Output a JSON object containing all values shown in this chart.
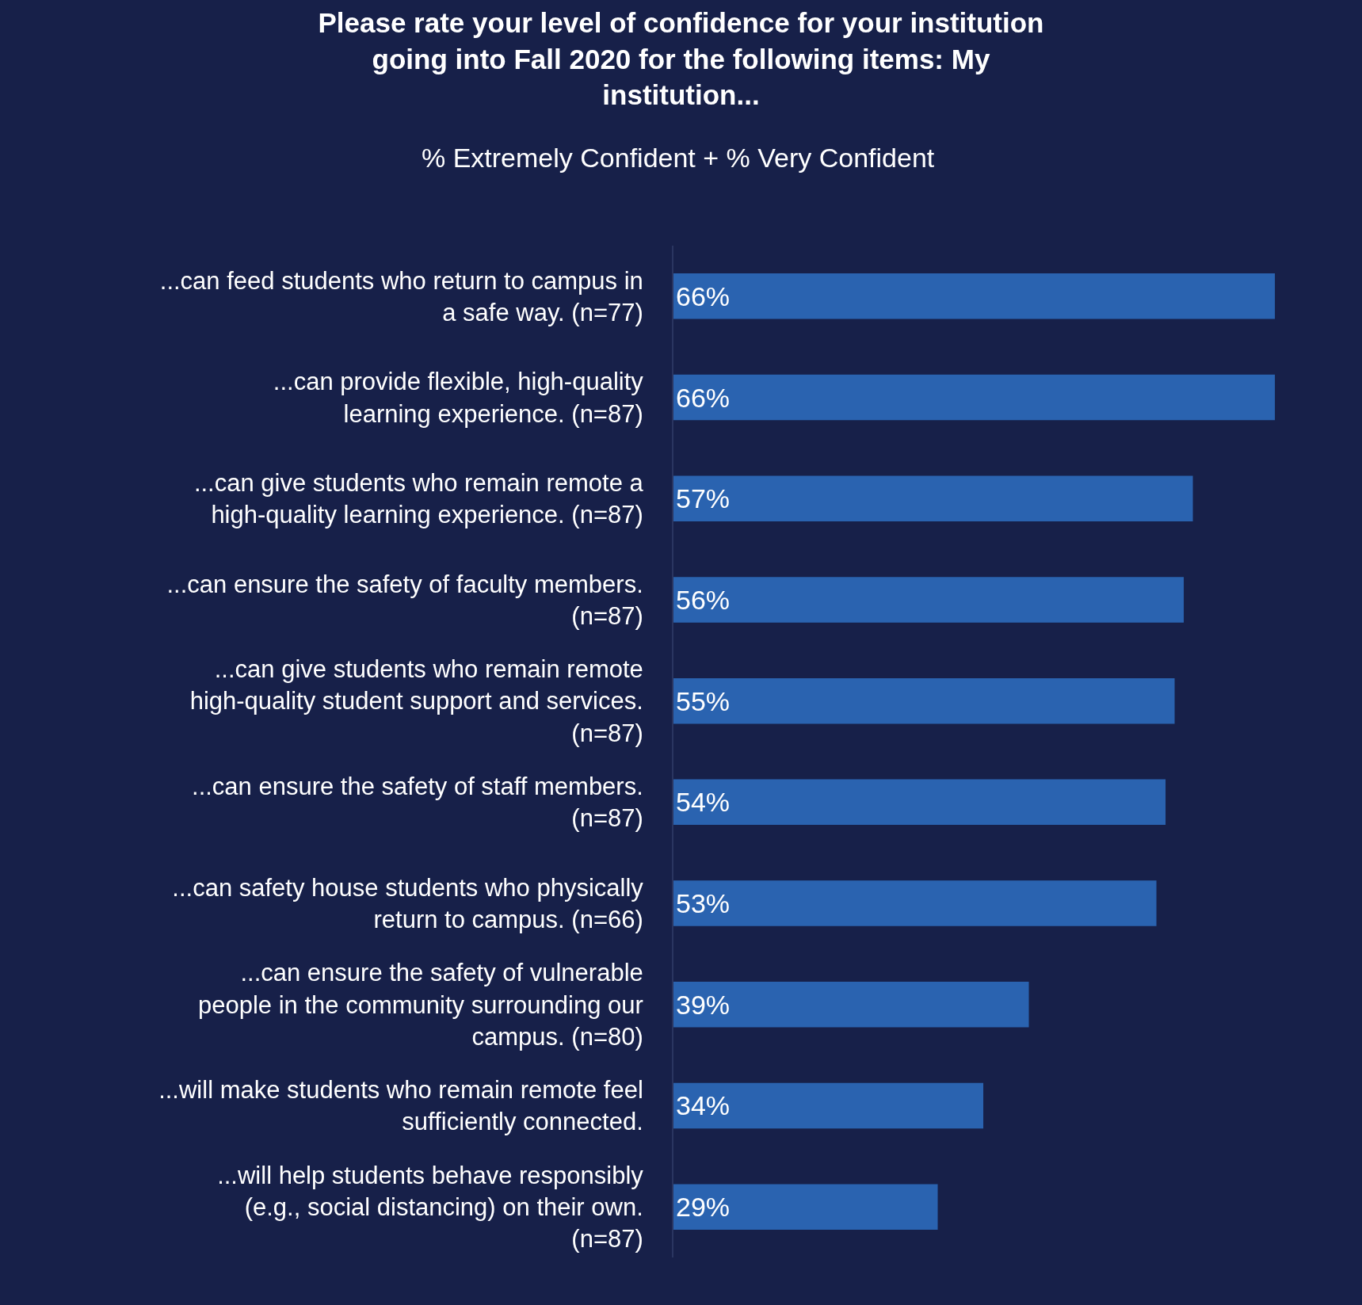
{
  "chart_data": {
    "type": "bar",
    "orientation": "horizontal",
    "title": "Please rate your level of confidence for your institution going into Fall 2020 for the following items: My institution...",
    "subtitle": "% Extremely Confident + % Very Confident",
    "categories": [
      "...can feed students who return to campus in a safe way. (n=77)",
      "...can provide flexible, high-quality learning experience. (n=87)",
      "...can give students who remain remote a high-quality learning experience. (n=87)",
      "...can ensure the safety of faculty members. (n=87)",
      "...can give students who remain remote high-quality student support and services. (n=87)",
      "...can ensure the safety of staff members. (n=87)",
      "...can safety house students who physically return to campus. (n=66)",
      "...can ensure the safety of vulnerable people in the community surrounding our campus. (n=80)",
      "...will make students who remain remote feel sufficiently connected.",
      "...will help students behave responsibly (e.g., social distancing) on their own. (n=87)"
    ],
    "values": [
      66,
      66,
      57,
      56,
      55,
      54,
      53,
      39,
      34,
      29
    ],
    "value_labels": [
      "66%",
      "66%",
      "57%",
      "56%",
      "55%",
      "54%",
      "53%",
      "39%",
      "34%",
      "29%"
    ],
    "color": "#2a63b0",
    "tick_labels": "y"
  }
}
